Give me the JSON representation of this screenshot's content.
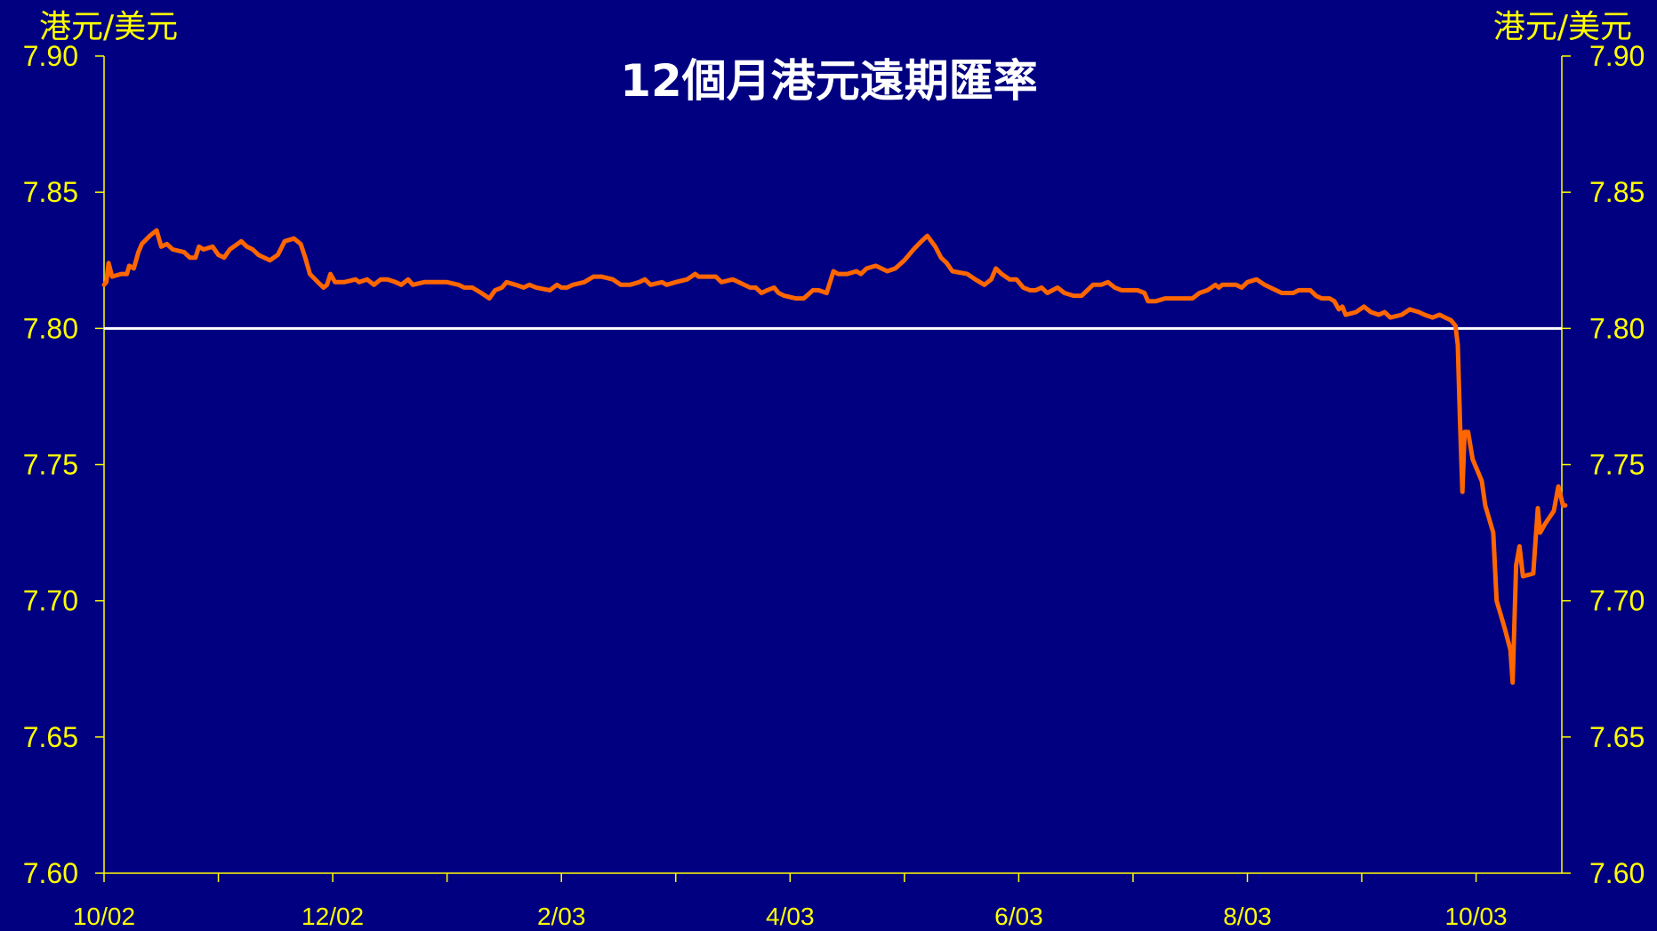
{
  "chart_data": {
    "type": "line",
    "title": "12個月港元遠期匯率",
    "ylabel_left": "港元/美元",
    "ylabel_right": "港元/美元",
    "ylim": [
      7.6,
      7.9
    ],
    "yticks": [
      "7.90",
      "7.85",
      "7.80",
      "7.75",
      "7.70",
      "7.65",
      "7.60"
    ],
    "xtick_labels": [
      "10/02",
      "12/02",
      "2/03",
      "4/03",
      "6/03",
      "8/03",
      "10/03"
    ],
    "x_range": [
      0,
      12.75
    ],
    "reference_line": 7.8,
    "series": [
      {
        "color": "#ff6600",
        "points": [
          [
            0.0,
            7.816
          ],
          [
            0.02,
            7.817
          ],
          [
            0.04,
            7.824
          ],
          [
            0.07,
            7.819
          ],
          [
            0.15,
            7.82
          ],
          [
            0.2,
            7.82
          ],
          [
            0.22,
            7.823
          ],
          [
            0.26,
            7.822
          ],
          [
            0.3,
            7.828
          ],
          [
            0.33,
            7.831
          ],
          [
            0.4,
            7.834
          ],
          [
            0.46,
            7.836
          ],
          [
            0.5,
            7.83
          ],
          [
            0.55,
            7.831
          ],
          [
            0.6,
            7.829
          ],
          [
            0.7,
            7.828
          ],
          [
            0.75,
            7.826
          ],
          [
            0.8,
            7.826
          ],
          [
            0.83,
            7.83
          ],
          [
            0.87,
            7.829
          ],
          [
            0.95,
            7.83
          ],
          [
            1.0,
            7.827
          ],
          [
            1.05,
            7.826
          ],
          [
            1.1,
            7.829
          ],
          [
            1.2,
            7.832
          ],
          [
            1.25,
            7.83
          ],
          [
            1.3,
            7.829
          ],
          [
            1.35,
            7.827
          ],
          [
            1.45,
            7.825
          ],
          [
            1.52,
            7.827
          ],
          [
            1.58,
            7.832
          ],
          [
            1.66,
            7.833
          ],
          [
            1.72,
            7.831
          ],
          [
            1.76,
            7.826
          ],
          [
            1.8,
            7.82
          ],
          [
            1.87,
            7.817
          ],
          [
            1.92,
            7.815
          ],
          [
            1.95,
            7.816
          ],
          [
            1.98,
            7.82
          ],
          [
            2.02,
            7.817
          ],
          [
            2.1,
            7.817
          ],
          [
            2.2,
            7.818
          ],
          [
            2.23,
            7.817
          ],
          [
            2.3,
            7.818
          ],
          [
            2.36,
            7.816
          ],
          [
            2.42,
            7.818
          ],
          [
            2.48,
            7.818
          ],
          [
            2.55,
            7.817
          ],
          [
            2.6,
            7.816
          ],
          [
            2.66,
            7.818
          ],
          [
            2.7,
            7.816
          ],
          [
            2.8,
            7.817
          ],
          [
            2.9,
            7.817
          ],
          [
            3.0,
            7.817
          ],
          [
            3.1,
            7.816
          ],
          [
            3.15,
            7.815
          ],
          [
            3.22,
            7.815
          ],
          [
            3.3,
            7.813
          ],
          [
            3.37,
            7.811
          ],
          [
            3.42,
            7.814
          ],
          [
            3.48,
            7.815
          ],
          [
            3.52,
            7.817
          ],
          [
            3.6,
            7.816
          ],
          [
            3.67,
            7.815
          ],
          [
            3.72,
            7.816
          ],
          [
            3.78,
            7.815
          ],
          [
            3.9,
            7.814
          ],
          [
            3.96,
            7.816
          ],
          [
            4.0,
            7.815
          ],
          [
            4.05,
            7.815
          ],
          [
            4.1,
            7.816
          ],
          [
            4.2,
            7.817
          ],
          [
            4.28,
            7.819
          ],
          [
            4.35,
            7.819
          ],
          [
            4.45,
            7.818
          ],
          [
            4.52,
            7.816
          ],
          [
            4.6,
            7.816
          ],
          [
            4.68,
            7.817
          ],
          [
            4.73,
            7.818
          ],
          [
            4.78,
            7.816
          ],
          [
            4.88,
            7.817
          ],
          [
            4.92,
            7.816
          ],
          [
            5.0,
            7.817
          ],
          [
            5.1,
            7.818
          ],
          [
            5.17,
            7.82
          ],
          [
            5.2,
            7.819
          ],
          [
            5.25,
            7.819
          ],
          [
            5.35,
            7.819
          ],
          [
            5.4,
            7.817
          ],
          [
            5.5,
            7.818
          ],
          [
            5.55,
            7.817
          ],
          [
            5.65,
            7.815
          ],
          [
            5.7,
            7.815
          ],
          [
            5.75,
            7.813
          ],
          [
            5.8,
            7.814
          ],
          [
            5.86,
            7.815
          ],
          [
            5.9,
            7.813
          ],
          [
            5.95,
            7.812
          ],
          [
            6.05,
            7.811
          ],
          [
            6.12,
            7.811
          ],
          [
            6.2,
            7.814
          ],
          [
            6.25,
            7.814
          ],
          [
            6.32,
            7.813
          ],
          [
            6.38,
            7.821
          ],
          [
            6.42,
            7.82
          ],
          [
            6.5,
            7.82
          ],
          [
            6.58,
            7.821
          ],
          [
            6.62,
            7.82
          ],
          [
            6.67,
            7.822
          ],
          [
            6.75,
            7.823
          ],
          [
            6.85,
            7.821
          ],
          [
            6.92,
            7.822
          ],
          [
            7.0,
            7.825
          ],
          [
            7.08,
            7.829
          ],
          [
            7.15,
            7.832
          ],
          [
            7.2,
            7.834
          ],
          [
            7.27,
            7.83
          ],
          [
            7.32,
            7.826
          ],
          [
            7.37,
            7.824
          ],
          [
            7.42,
            7.821
          ],
          [
            7.55,
            7.82
          ],
          [
            7.62,
            7.818
          ],
          [
            7.7,
            7.816
          ],
          [
            7.76,
            7.818
          ],
          [
            7.8,
            7.822
          ],
          [
            7.85,
            7.82
          ],
          [
            7.92,
            7.818
          ],
          [
            7.98,
            7.818
          ],
          [
            8.04,
            7.815
          ],
          [
            8.1,
            7.814
          ],
          [
            8.15,
            7.814
          ],
          [
            8.2,
            7.815
          ],
          [
            8.25,
            7.813
          ],
          [
            8.34,
            7.815
          ],
          [
            8.4,
            7.813
          ],
          [
            8.48,
            7.812
          ],
          [
            8.55,
            7.812
          ],
          [
            8.6,
            7.814
          ],
          [
            8.65,
            7.816
          ],
          [
            8.72,
            7.816
          ],
          [
            8.78,
            7.817
          ],
          [
            8.84,
            7.815
          ],
          [
            8.9,
            7.814
          ],
          [
            8.98,
            7.814
          ],
          [
            9.04,
            7.814
          ],
          [
            9.1,
            7.813
          ],
          [
            9.13,
            7.81
          ],
          [
            9.2,
            7.81
          ],
          [
            9.28,
            7.811
          ],
          [
            9.35,
            7.811
          ],
          [
            9.45,
            7.811
          ],
          [
            9.52,
            7.811
          ],
          [
            9.58,
            7.813
          ],
          [
            9.65,
            7.814
          ],
          [
            9.72,
            7.816
          ],
          [
            9.75,
            7.815
          ],
          [
            9.78,
            7.816
          ],
          [
            9.85,
            7.816
          ],
          [
            9.9,
            7.816
          ],
          [
            9.95,
            7.815
          ],
          [
            10.0,
            7.817
          ],
          [
            10.08,
            7.818
          ],
          [
            10.15,
            7.816
          ],
          [
            10.2,
            7.815
          ],
          [
            10.3,
            7.813
          ],
          [
            10.4,
            7.813
          ],
          [
            10.45,
            7.814
          ],
          [
            10.55,
            7.814
          ],
          [
            10.6,
            7.812
          ],
          [
            10.65,
            7.811
          ],
          [
            10.72,
            7.811
          ],
          [
            10.76,
            7.81
          ],
          [
            10.8,
            7.807
          ],
          [
            10.83,
            7.808
          ],
          [
            10.86,
            7.805
          ],
          [
            10.95,
            7.806
          ],
          [
            11.02,
            7.808
          ],
          [
            11.08,
            7.806
          ],
          [
            11.15,
            7.805
          ],
          [
            11.2,
            7.806
          ],
          [
            11.25,
            7.804
          ],
          [
            11.35,
            7.805
          ],
          [
            11.42,
            7.807
          ],
          [
            11.5,
            7.806
          ],
          [
            11.55,
            7.805
          ],
          [
            11.62,
            7.804
          ],
          [
            11.68,
            7.805
          ],
          [
            11.73,
            7.804
          ],
          [
            11.78,
            7.803
          ],
          [
            11.82,
            7.801
          ],
          [
            11.84,
            7.794
          ],
          [
            11.86,
            7.765
          ],
          [
            11.88,
            7.74
          ],
          [
            11.9,
            7.762
          ],
          [
            11.93,
            7.762
          ],
          [
            11.97,
            7.752
          ],
          [
            12.05,
            7.744
          ],
          [
            12.08,
            7.735
          ],
          [
            12.15,
            7.725
          ],
          [
            12.18,
            7.7
          ],
          [
            12.25,
            7.69
          ],
          [
            12.3,
            7.682
          ],
          [
            12.32,
            7.67
          ],
          [
            12.35,
            7.713
          ],
          [
            12.38,
            7.72
          ],
          [
            12.41,
            7.709
          ],
          [
            12.5,
            7.71
          ],
          [
            12.52,
            7.722
          ],
          [
            12.54,
            7.734
          ],
          [
            12.56,
            7.725
          ],
          [
            12.6,
            7.728
          ],
          [
            12.68,
            7.733
          ],
          [
            12.72,
            7.742
          ],
          [
            12.76,
            7.735
          ],
          [
            12.78,
            7.735
          ]
        ]
      }
    ],
    "reference_line_color": "#ffffff",
    "axis_color": "#ffff00",
    "background_color": "#000080"
  }
}
